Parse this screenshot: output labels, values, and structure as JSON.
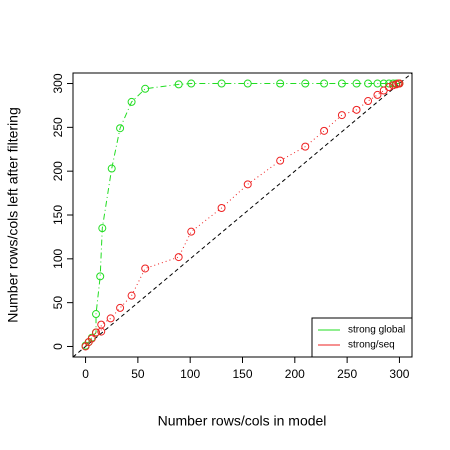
{
  "chart_data": {
    "type": "scatter",
    "x_label": "Number rows/cols in model",
    "y_label": "Number rows/cols left after filtering",
    "xlim": [
      -12,
      312
    ],
    "ylim": [
      -12,
      312
    ],
    "xticks": [
      0,
      50,
      100,
      150,
      200,
      250,
      300
    ],
    "yticks": [
      0,
      50,
      100,
      150,
      200,
      250,
      300
    ],
    "legend_position": "bottom-right",
    "series": [
      {
        "name": "strong global",
        "color": "#22dd22",
        "line_style": "dashdot",
        "x": [
          0,
          3,
          6,
          10,
          10,
          14,
          16,
          25,
          33,
          44,
          57,
          89,
          101,
          130,
          155,
          186,
          210,
          228,
          245,
          259,
          270,
          279,
          285,
          290,
          294,
          297,
          299,
          300
        ],
        "values": [
          1,
          5,
          10,
          16,
          37,
          80,
          135,
          203,
          249,
          279,
          294,
          299,
          300,
          300,
          300,
          300,
          300,
          300,
          300,
          300,
          300,
          300,
          300,
          300,
          300,
          300,
          300,
          300
        ]
      },
      {
        "name": "strong/seq",
        "color": "#ee2222",
        "line_style": "dotted",
        "x": [
          0,
          3,
          6,
          10,
          15,
          15,
          24,
          33,
          44,
          57,
          89,
          101,
          130,
          155,
          186,
          210,
          228,
          245,
          259,
          270,
          279,
          285,
          290,
          294,
          297,
          299,
          300
        ],
        "values": [
          0,
          5,
          9,
          16,
          17,
          25,
          32,
          44,
          58,
          89,
          102,
          131,
          158,
          185,
          212,
          228,
          246,
          264,
          270,
          280,
          287,
          292,
          296,
          298,
          299,
          300,
          300
        ]
      }
    ]
  }
}
